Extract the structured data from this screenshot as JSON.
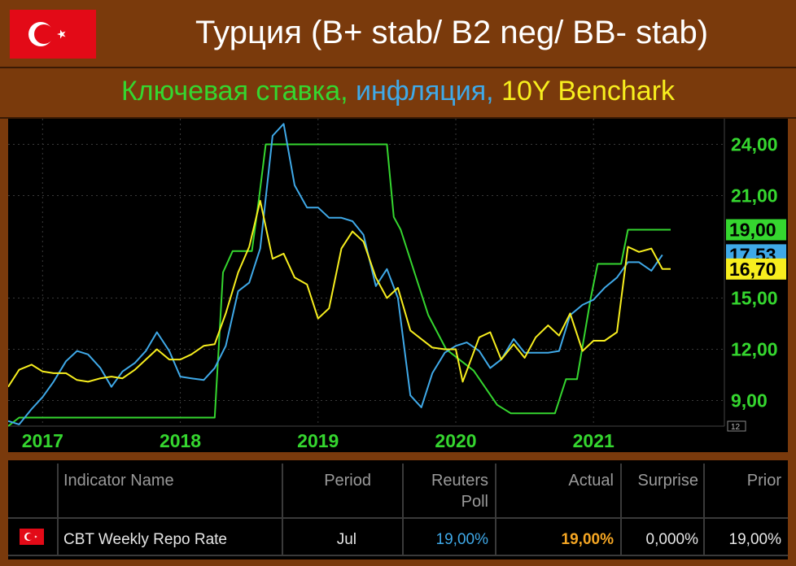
{
  "header": {
    "title": "Турция (B+ stab/ B2 neg/ BB- stab)",
    "subtitle_parts": [
      "Ключевая ставка,",
      "инфляция,",
      "10Y Benchark"
    ]
  },
  "colors": {
    "background": "#7a3a0c",
    "policy_rate": "#35d62f",
    "inflation": "#3fa9e8",
    "bond_10y": "#f7ee1e"
  },
  "chart_data": {
    "type": "line",
    "x_ticks": [
      "2017",
      "2018",
      "2019",
      "2020",
      "2021"
    ],
    "y_ticks": [
      "24,00",
      "21,00",
      "15,00",
      "12,00",
      "9,00"
    ],
    "ylim": [
      7.5,
      25.5
    ],
    "xlim": [
      2016.75,
      2021.95
    ],
    "last_value_labels": [
      "19,00",
      "17,53",
      "16,70"
    ],
    "small_marker": "12",
    "series": [
      {
        "color": "policy_rate",
        "points": [
          [
            2016.75,
            7.5
          ],
          [
            2016.83,
            8.0
          ],
          [
            2018.23,
            8.0
          ],
          [
            2018.25,
            8.0
          ],
          [
            2018.31,
            16.5
          ],
          [
            2018.38,
            17.75
          ],
          [
            2018.45,
            17.75
          ],
          [
            2018.52,
            17.75
          ],
          [
            2018.57,
            20.75
          ],
          [
            2018.62,
            24.0
          ],
          [
            2019.5,
            24.0
          ],
          [
            2019.55,
            19.75
          ],
          [
            2019.6,
            19.0
          ],
          [
            2019.7,
            16.5
          ],
          [
            2019.8,
            14.0
          ],
          [
            2019.93,
            12.0
          ],
          [
            2020.05,
            11.25
          ],
          [
            2020.13,
            10.75
          ],
          [
            2020.3,
            8.75
          ],
          [
            2020.4,
            8.25
          ],
          [
            2020.72,
            8.25
          ],
          [
            2020.8,
            10.25
          ],
          [
            2020.88,
            10.25
          ],
          [
            2020.98,
            15.0
          ],
          [
            2021.03,
            17.0
          ],
          [
            2021.2,
            17.0
          ],
          [
            2021.25,
            19.0
          ],
          [
            2021.56,
            19.0
          ]
        ]
      },
      {
        "color": "inflation",
        "points": [
          [
            2016.75,
            7.8
          ],
          [
            2016.83,
            7.6
          ],
          [
            2016.92,
            8.5
          ],
          [
            2017.0,
            9.2
          ],
          [
            2017.08,
            10.1
          ],
          [
            2017.17,
            11.3
          ],
          [
            2017.25,
            11.9
          ],
          [
            2017.33,
            11.7
          ],
          [
            2017.42,
            10.9
          ],
          [
            2017.5,
            9.8
          ],
          [
            2017.58,
            10.7
          ],
          [
            2017.67,
            11.2
          ],
          [
            2017.75,
            11.9
          ],
          [
            2017.83,
            13.0
          ],
          [
            2017.92,
            11.9
          ],
          [
            2018.0,
            10.4
          ],
          [
            2018.08,
            10.3
          ],
          [
            2018.17,
            10.2
          ],
          [
            2018.25,
            10.9
          ],
          [
            2018.33,
            12.2
          ],
          [
            2018.42,
            15.4
          ],
          [
            2018.5,
            15.9
          ],
          [
            2018.58,
            17.9
          ],
          [
            2018.67,
            24.5
          ],
          [
            2018.75,
            25.2
          ],
          [
            2018.83,
            21.6
          ],
          [
            2018.92,
            20.3
          ],
          [
            2019.0,
            20.3
          ],
          [
            2019.08,
            19.7
          ],
          [
            2019.17,
            19.7
          ],
          [
            2019.25,
            19.5
          ],
          [
            2019.33,
            18.7
          ],
          [
            2019.42,
            15.7
          ],
          [
            2019.5,
            16.7
          ],
          [
            2019.58,
            15.0
          ],
          [
            2019.67,
            9.3
          ],
          [
            2019.75,
            8.6
          ],
          [
            2019.83,
            10.6
          ],
          [
            2019.92,
            11.8
          ],
          [
            2020.0,
            12.2
          ],
          [
            2020.08,
            12.4
          ],
          [
            2020.17,
            11.9
          ],
          [
            2020.25,
            10.9
          ],
          [
            2020.33,
            11.4
          ],
          [
            2020.42,
            12.6
          ],
          [
            2020.5,
            11.8
          ],
          [
            2020.58,
            11.8
          ],
          [
            2020.67,
            11.8
          ],
          [
            2020.75,
            11.9
          ],
          [
            2020.83,
            14.0
          ],
          [
            2020.92,
            14.6
          ],
          [
            2021.0,
            14.9
          ],
          [
            2021.08,
            15.6
          ],
          [
            2021.17,
            16.2
          ],
          [
            2021.25,
            17.1
          ],
          [
            2021.33,
            17.1
          ],
          [
            2021.42,
            16.6
          ],
          [
            2021.5,
            17.53
          ]
        ]
      },
      {
        "color": "bond_10y",
        "points": [
          [
            2016.75,
            9.8
          ],
          [
            2016.83,
            10.8
          ],
          [
            2016.92,
            11.1
          ],
          [
            2017.0,
            10.7
          ],
          [
            2017.08,
            10.6
          ],
          [
            2017.17,
            10.6
          ],
          [
            2017.25,
            10.2
          ],
          [
            2017.33,
            10.1
          ],
          [
            2017.42,
            10.3
          ],
          [
            2017.5,
            10.4
          ],
          [
            2017.58,
            10.3
          ],
          [
            2017.67,
            10.8
          ],
          [
            2017.75,
            11.4
          ],
          [
            2017.83,
            12.0
          ],
          [
            2017.92,
            11.4
          ],
          [
            2018.0,
            11.4
          ],
          [
            2018.08,
            11.7
          ],
          [
            2018.17,
            12.2
          ],
          [
            2018.25,
            12.3
          ],
          [
            2018.33,
            14.1
          ],
          [
            2018.42,
            16.5
          ],
          [
            2018.5,
            18.0
          ],
          [
            2018.58,
            20.7
          ],
          [
            2018.67,
            17.3
          ],
          [
            2018.75,
            17.6
          ],
          [
            2018.83,
            16.2
          ],
          [
            2018.92,
            15.8
          ],
          [
            2019.0,
            13.8
          ],
          [
            2019.08,
            14.4
          ],
          [
            2019.17,
            17.9
          ],
          [
            2019.25,
            18.9
          ],
          [
            2019.33,
            18.3
          ],
          [
            2019.42,
            16.2
          ],
          [
            2019.5,
            15.0
          ],
          [
            2019.58,
            15.6
          ],
          [
            2019.67,
            13.1
          ],
          [
            2019.75,
            12.6
          ],
          [
            2019.83,
            12.1
          ],
          [
            2019.92,
            12.0
          ],
          [
            2020.0,
            12.0
          ],
          [
            2020.05,
            10.1
          ],
          [
            2020.17,
            12.7
          ],
          [
            2020.25,
            13.0
          ],
          [
            2020.33,
            11.4
          ],
          [
            2020.42,
            12.3
          ],
          [
            2020.5,
            11.5
          ],
          [
            2020.58,
            12.7
          ],
          [
            2020.67,
            13.4
          ],
          [
            2020.75,
            12.8
          ],
          [
            2020.83,
            14.1
          ],
          [
            2020.92,
            11.9
          ],
          [
            2021.0,
            12.5
          ],
          [
            2021.08,
            12.5
          ],
          [
            2021.17,
            13.0
          ],
          [
            2021.25,
            18.0
          ],
          [
            2021.33,
            17.7
          ],
          [
            2021.42,
            17.9
          ],
          [
            2021.5,
            16.7
          ],
          [
            2021.56,
            16.7
          ]
        ]
      }
    ]
  },
  "table": {
    "headers": {
      "indicator": "Indicator Name",
      "period": "Period",
      "poll_line1": "Reuters",
      "poll_line2": "Poll",
      "actual": "Actual",
      "surprise": "Surprise",
      "prior": "Prior"
    },
    "row": {
      "indicator": "CBT Weekly Repo Rate",
      "period": "Jul",
      "poll": "19,00%",
      "actual": "19,00%",
      "surprise": "0,000%",
      "prior": "19,00%"
    },
    "colors": {
      "poll": "#3fa9e8",
      "actual": "#f5a623"
    }
  }
}
